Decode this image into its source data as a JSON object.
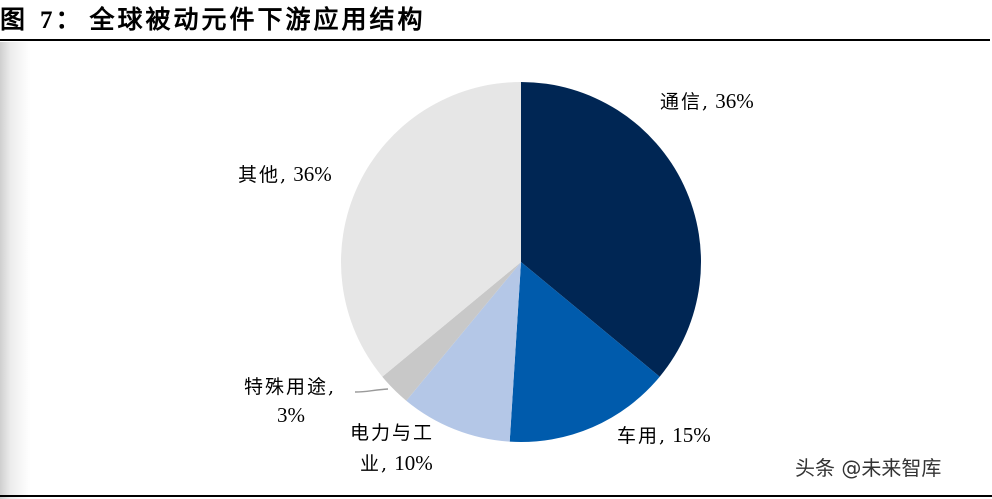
{
  "figure": {
    "prefix": "图",
    "number": "7：",
    "title": "全球被动元件下游应用结构"
  },
  "watermark": "头条 @未来智库",
  "labels": {
    "telecom": {
      "name": "通信,",
      "pct": " 36%"
    },
    "other": {
      "name": "其他,",
      "pct": " 36%"
    },
    "special_line1": "特殊用途,",
    "special_pct": "3%",
    "power_line1": "电力与工",
    "power_line2_name": "业,",
    "power_pct": " 10%",
    "auto": {
      "name": "车用,",
      "pct": " 15%"
    }
  },
  "chart_data": {
    "type": "pie",
    "title": "全球被动元件下游应用结构",
    "start_angle": "12 o'clock, clockwise",
    "categories": [
      "通信",
      "车用",
      "电力与工业",
      "特殊用途",
      "其他"
    ],
    "values": [
      36,
      15,
      10,
      3,
      36
    ],
    "unit": "%",
    "colors": [
      "#002654",
      "#005BAC",
      "#B4C7E7",
      "#C8C8C8",
      "#E6E6E6"
    ],
    "legend": "none (data labels outside slices)"
  }
}
